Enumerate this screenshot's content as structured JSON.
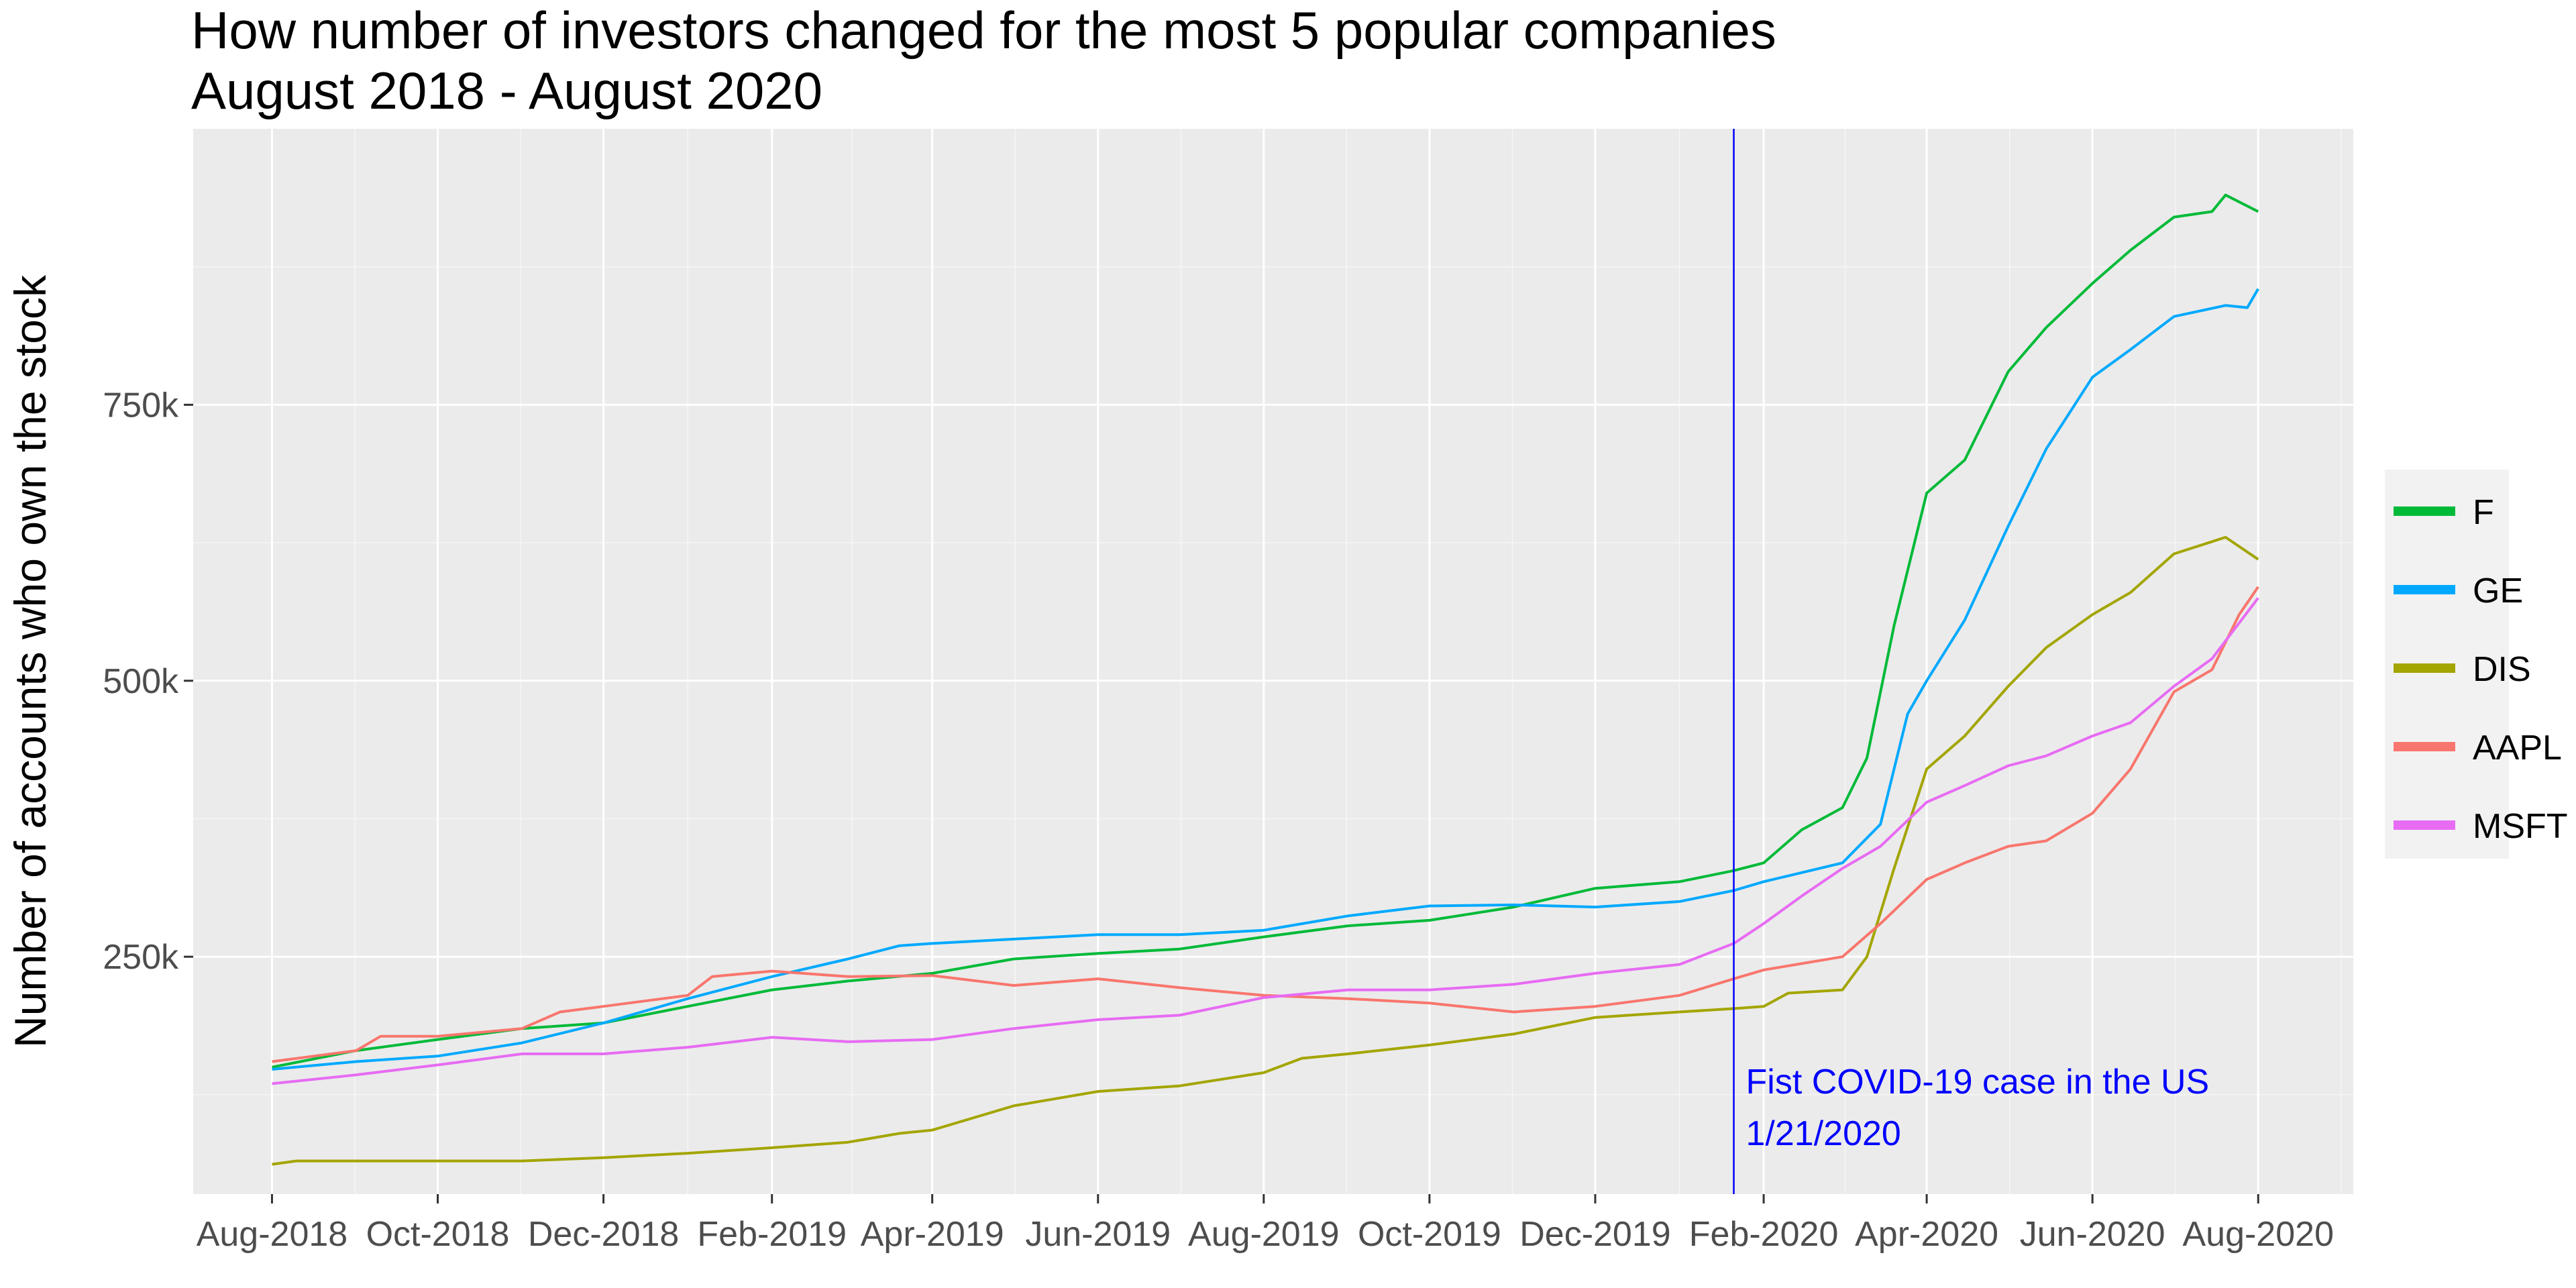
{
  "chart_data": {
    "type": "line",
    "title": "How number of investors changed for the most 5 popular companies",
    "subtitle": "August 2018 - August 2020",
    "xlabel": "",
    "ylabel": "Number of accounts who own the stock",
    "xlim": [
      "2018-07-03",
      "2020-09-05"
    ],
    "ylim": [
      35000,
      1000000
    ],
    "x_ticks": [
      {
        "date": "2018-08-01",
        "label": "Aug-2018"
      },
      {
        "date": "2018-10-01",
        "label": "Oct-2018"
      },
      {
        "date": "2018-12-01",
        "label": "Dec-2018"
      },
      {
        "date": "2019-02-01",
        "label": "Feb-2019"
      },
      {
        "date": "2019-04-01",
        "label": "Apr-2019"
      },
      {
        "date": "2019-06-01",
        "label": "Jun-2019"
      },
      {
        "date": "2019-08-01",
        "label": "Aug-2019"
      },
      {
        "date": "2019-10-01",
        "label": "Oct-2019"
      },
      {
        "date": "2019-12-01",
        "label": "Dec-2019"
      },
      {
        "date": "2020-02-01",
        "label": "Feb-2020"
      },
      {
        "date": "2020-04-01",
        "label": "Apr-2020"
      },
      {
        "date": "2020-06-01",
        "label": "Jun-2020"
      },
      {
        "date": "2020-08-01",
        "label": "Aug-2020"
      }
    ],
    "y_ticks": [
      {
        "value": 250000,
        "label": "250k"
      },
      {
        "value": 500000,
        "label": "500k"
      },
      {
        "value": 750000,
        "label": "750k"
      }
    ],
    "grid": true,
    "legend_position": "right",
    "series": [
      {
        "name": "F",
        "color": "#00BA38",
        "points": [
          [
            "2018-08-01",
            150000
          ],
          [
            "2018-09-01",
            165000
          ],
          [
            "2018-10-01",
            175000
          ],
          [
            "2018-11-01",
            185000
          ],
          [
            "2018-12-01",
            190000
          ],
          [
            "2019-01-01",
            205000
          ],
          [
            "2019-02-01",
            220000
          ],
          [
            "2019-03-01",
            228000
          ],
          [
            "2019-04-01",
            235000
          ],
          [
            "2019-05-01",
            248000
          ],
          [
            "2019-06-01",
            253000
          ],
          [
            "2019-07-01",
            257000
          ],
          [
            "2019-08-01",
            268000
          ],
          [
            "2019-09-01",
            278000
          ],
          [
            "2019-10-01",
            283000
          ],
          [
            "2019-11-01",
            295000
          ],
          [
            "2019-12-01",
            312000
          ],
          [
            "2020-01-01",
            318000
          ],
          [
            "2020-01-21",
            328000
          ],
          [
            "2020-02-01",
            335000
          ],
          [
            "2020-02-15",
            365000
          ],
          [
            "2020-03-01",
            385000
          ],
          [
            "2020-03-10",
            430000
          ],
          [
            "2020-03-20",
            550000
          ],
          [
            "2020-04-01",
            670000
          ],
          [
            "2020-04-15",
            700000
          ],
          [
            "2020-05-01",
            780000
          ],
          [
            "2020-05-15",
            820000
          ],
          [
            "2020-06-01",
            860000
          ],
          [
            "2020-06-15",
            890000
          ],
          [
            "2020-07-01",
            920000
          ],
          [
            "2020-07-15",
            925000
          ],
          [
            "2020-07-20",
            940000
          ],
          [
            "2020-08-01",
            925000
          ]
        ]
      },
      {
        "name": "GE",
        "color": "#00A9FF",
        "points": [
          [
            "2018-08-01",
            148000
          ],
          [
            "2018-09-01",
            155000
          ],
          [
            "2018-10-01",
            160000
          ],
          [
            "2018-11-01",
            172000
          ],
          [
            "2018-12-01",
            190000
          ],
          [
            "2019-01-01",
            212000
          ],
          [
            "2019-02-01",
            232000
          ],
          [
            "2019-03-01",
            248000
          ],
          [
            "2019-03-20",
            260000
          ],
          [
            "2019-04-01",
            262000
          ],
          [
            "2019-05-01",
            266000
          ],
          [
            "2019-06-01",
            270000
          ],
          [
            "2019-07-01",
            270000
          ],
          [
            "2019-08-01",
            274000
          ],
          [
            "2019-09-01",
            287000
          ],
          [
            "2019-10-01",
            296000
          ],
          [
            "2019-11-01",
            297000
          ],
          [
            "2019-12-01",
            295000
          ],
          [
            "2020-01-01",
            300000
          ],
          [
            "2020-01-21",
            310000
          ],
          [
            "2020-02-01",
            318000
          ],
          [
            "2020-03-01",
            335000
          ],
          [
            "2020-03-15",
            370000
          ],
          [
            "2020-03-25",
            470000
          ],
          [
            "2020-04-01",
            500000
          ],
          [
            "2020-04-15",
            555000
          ],
          [
            "2020-05-01",
            640000
          ],
          [
            "2020-05-15",
            710000
          ],
          [
            "2020-06-01",
            775000
          ],
          [
            "2020-06-15",
            800000
          ],
          [
            "2020-07-01",
            830000
          ],
          [
            "2020-07-20",
            840000
          ],
          [
            "2020-07-28",
            838000
          ],
          [
            "2020-08-01",
            855000
          ]
        ]
      },
      {
        "name": "DIS",
        "color": "#A3A500",
        "points": [
          [
            "2018-08-01",
            62000
          ],
          [
            "2018-08-10",
            65000
          ],
          [
            "2018-09-01",
            65000
          ],
          [
            "2018-10-01",
            65000
          ],
          [
            "2018-11-01",
            65000
          ],
          [
            "2018-12-01",
            68000
          ],
          [
            "2019-01-01",
            72000
          ],
          [
            "2019-02-01",
            77000
          ],
          [
            "2019-03-01",
            82000
          ],
          [
            "2019-03-20",
            90000
          ],
          [
            "2019-04-01",
            93000
          ],
          [
            "2019-05-01",
            115000
          ],
          [
            "2019-06-01",
            128000
          ],
          [
            "2019-07-01",
            133000
          ],
          [
            "2019-08-01",
            145000
          ],
          [
            "2019-08-15",
            158000
          ],
          [
            "2019-09-01",
            162000
          ],
          [
            "2019-10-01",
            170000
          ],
          [
            "2019-11-01",
            180000
          ],
          [
            "2019-12-01",
            195000
          ],
          [
            "2020-01-01",
            200000
          ],
          [
            "2020-01-21",
            203000
          ],
          [
            "2020-02-01",
            205000
          ],
          [
            "2020-02-10",
            217000
          ],
          [
            "2020-03-01",
            220000
          ],
          [
            "2020-03-10",
            250000
          ],
          [
            "2020-03-20",
            330000
          ],
          [
            "2020-04-01",
            420000
          ],
          [
            "2020-04-15",
            450000
          ],
          [
            "2020-05-01",
            495000
          ],
          [
            "2020-05-15",
            530000
          ],
          [
            "2020-06-01",
            560000
          ],
          [
            "2020-06-15",
            580000
          ],
          [
            "2020-07-01",
            615000
          ],
          [
            "2020-07-20",
            630000
          ],
          [
            "2020-08-01",
            610000
          ]
        ]
      },
      {
        "name": "AAPL",
        "color": "#F8766D",
        "points": [
          [
            "2018-08-01",
            155000
          ],
          [
            "2018-09-01",
            165000
          ],
          [
            "2018-09-10",
            178000
          ],
          [
            "2018-10-01",
            178000
          ],
          [
            "2018-11-01",
            185000
          ],
          [
            "2018-11-15",
            200000
          ],
          [
            "2018-12-01",
            205000
          ],
          [
            "2019-01-01",
            215000
          ],
          [
            "2019-01-10",
            232000
          ],
          [
            "2019-02-01",
            237000
          ],
          [
            "2019-03-01",
            232000
          ],
          [
            "2019-04-01",
            233000
          ],
          [
            "2019-05-01",
            224000
          ],
          [
            "2019-06-01",
            230000
          ],
          [
            "2019-07-01",
            222000
          ],
          [
            "2019-08-01",
            215000
          ],
          [
            "2019-09-01",
            212000
          ],
          [
            "2019-10-01",
            208000
          ],
          [
            "2019-11-01",
            200000
          ],
          [
            "2019-12-01",
            205000
          ],
          [
            "2020-01-01",
            215000
          ],
          [
            "2020-01-21",
            230000
          ],
          [
            "2020-02-01",
            238000
          ],
          [
            "2020-03-01",
            250000
          ],
          [
            "2020-03-15",
            280000
          ],
          [
            "2020-04-01",
            320000
          ],
          [
            "2020-04-15",
            335000
          ],
          [
            "2020-05-01",
            350000
          ],
          [
            "2020-05-15",
            355000
          ],
          [
            "2020-06-01",
            380000
          ],
          [
            "2020-06-15",
            420000
          ],
          [
            "2020-07-01",
            490000
          ],
          [
            "2020-07-15",
            510000
          ],
          [
            "2020-07-25",
            560000
          ],
          [
            "2020-08-01",
            585000
          ]
        ]
      },
      {
        "name": "MSFT",
        "color": "#E76BF3",
        "points": [
          [
            "2018-08-01",
            135000
          ],
          [
            "2018-09-01",
            143000
          ],
          [
            "2018-10-01",
            152000
          ],
          [
            "2018-11-01",
            162000
          ],
          [
            "2018-12-01",
            162000
          ],
          [
            "2019-01-01",
            168000
          ],
          [
            "2019-02-01",
            177000
          ],
          [
            "2019-03-01",
            173000
          ],
          [
            "2019-04-01",
            175000
          ],
          [
            "2019-05-01",
            185000
          ],
          [
            "2019-06-01",
            193000
          ],
          [
            "2019-07-01",
            197000
          ],
          [
            "2019-08-01",
            213000
          ],
          [
            "2019-09-01",
            220000
          ],
          [
            "2019-10-01",
            220000
          ],
          [
            "2019-11-01",
            225000
          ],
          [
            "2019-12-01",
            235000
          ],
          [
            "2020-01-01",
            243000
          ],
          [
            "2020-01-21",
            262000
          ],
          [
            "2020-02-01",
            280000
          ],
          [
            "2020-02-15",
            305000
          ],
          [
            "2020-03-01",
            330000
          ],
          [
            "2020-03-15",
            350000
          ],
          [
            "2020-04-01",
            390000
          ],
          [
            "2020-04-15",
            405000
          ],
          [
            "2020-05-01",
            423000
          ],
          [
            "2020-05-15",
            432000
          ],
          [
            "2020-06-01",
            450000
          ],
          [
            "2020-06-15",
            462000
          ],
          [
            "2020-07-01",
            495000
          ],
          [
            "2020-07-15",
            520000
          ],
          [
            "2020-08-01",
            575000
          ]
        ]
      }
    ],
    "annotations": {
      "vline": {
        "date": "2020-01-21",
        "color": "#0000FF"
      },
      "lines": [
        "Fist COVID-19 case in the US",
        "1/21/2020"
      ]
    }
  }
}
